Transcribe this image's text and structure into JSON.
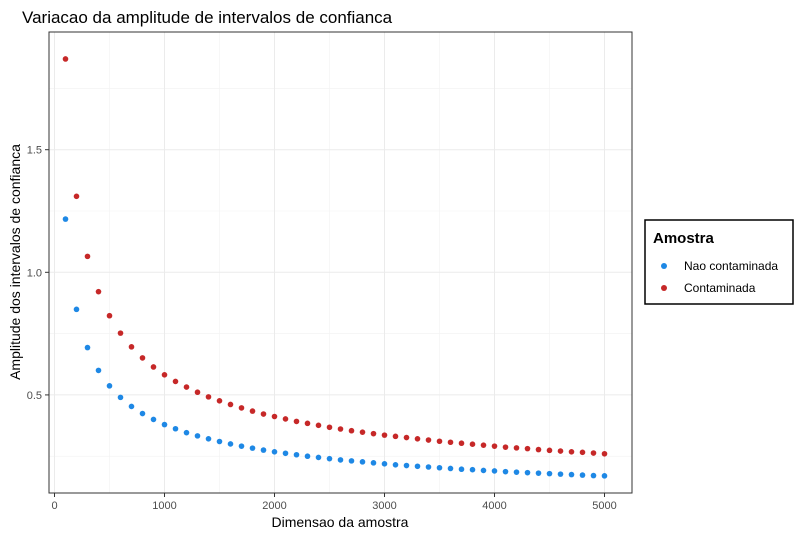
{
  "chart_data": {
    "type": "scatter",
    "title": "Variacao da amplitude de intervalos de confianca",
    "xlabel": "Dimensao da amostra",
    "ylabel": "Amplitude dos intervalos de confianca",
    "xlim": [
      -50,
      5250
    ],
    "ylim": [
      0.1,
      1.98
    ],
    "xticks": [
      0,
      1000,
      2000,
      3000,
      4000,
      5000
    ],
    "yticks": [
      0.5,
      1.0,
      1.5
    ],
    "ytick_labels": [
      "0.5",
      "1.0",
      "1.5"
    ],
    "grid": true,
    "legend_title": "Amostra",
    "legend_position": "right",
    "x": [
      100,
      200,
      300,
      400,
      500,
      600,
      700,
      800,
      900,
      1000,
      1100,
      1200,
      1300,
      1400,
      1500,
      1600,
      1700,
      1800,
      1900,
      2000,
      2100,
      2200,
      2300,
      2400,
      2500,
      2600,
      2700,
      2800,
      2900,
      3000,
      3100,
      3200,
      3300,
      3400,
      3500,
      3600,
      3700,
      3800,
      3900,
      4000,
      4100,
      4200,
      4300,
      4400,
      4500,
      4600,
      4700,
      4800,
      4900,
      5000
    ],
    "series": [
      {
        "name": "Nao contaminada",
        "color": "#1E88E5",
        "values": [
          1.217,
          0.849,
          0.693,
          0.6,
          0.537,
          0.49,
          0.453,
          0.424,
          0.4,
          0.379,
          0.362,
          0.346,
          0.333,
          0.321,
          0.31,
          0.3,
          0.291,
          0.283,
          0.275,
          0.268,
          0.262,
          0.256,
          0.25,
          0.245,
          0.24,
          0.235,
          0.231,
          0.227,
          0.223,
          0.219,
          0.215,
          0.212,
          0.209,
          0.206,
          0.203,
          0.2,
          0.197,
          0.195,
          0.192,
          0.19,
          0.187,
          0.185,
          0.183,
          0.181,
          0.179,
          0.177,
          0.175,
          0.173,
          0.171,
          0.17
        ]
      },
      {
        "name": "Contaminada",
        "color": "#C62828",
        "values": [
          1.87,
          1.31,
          1.065,
          0.921,
          0.823,
          0.752,
          0.696,
          0.651,
          0.614,
          0.582,
          0.555,
          0.532,
          0.511,
          0.492,
          0.476,
          0.461,
          0.447,
          0.434,
          0.422,
          0.412,
          0.402,
          0.392,
          0.384,
          0.376,
          0.368,
          0.361,
          0.354,
          0.348,
          0.342,
          0.336,
          0.331,
          0.326,
          0.321,
          0.316,
          0.311,
          0.307,
          0.303,
          0.299,
          0.295,
          0.291,
          0.287,
          0.284,
          0.281,
          0.277,
          0.274,
          0.271,
          0.268,
          0.266,
          0.263,
          0.26
        ]
      }
    ]
  }
}
